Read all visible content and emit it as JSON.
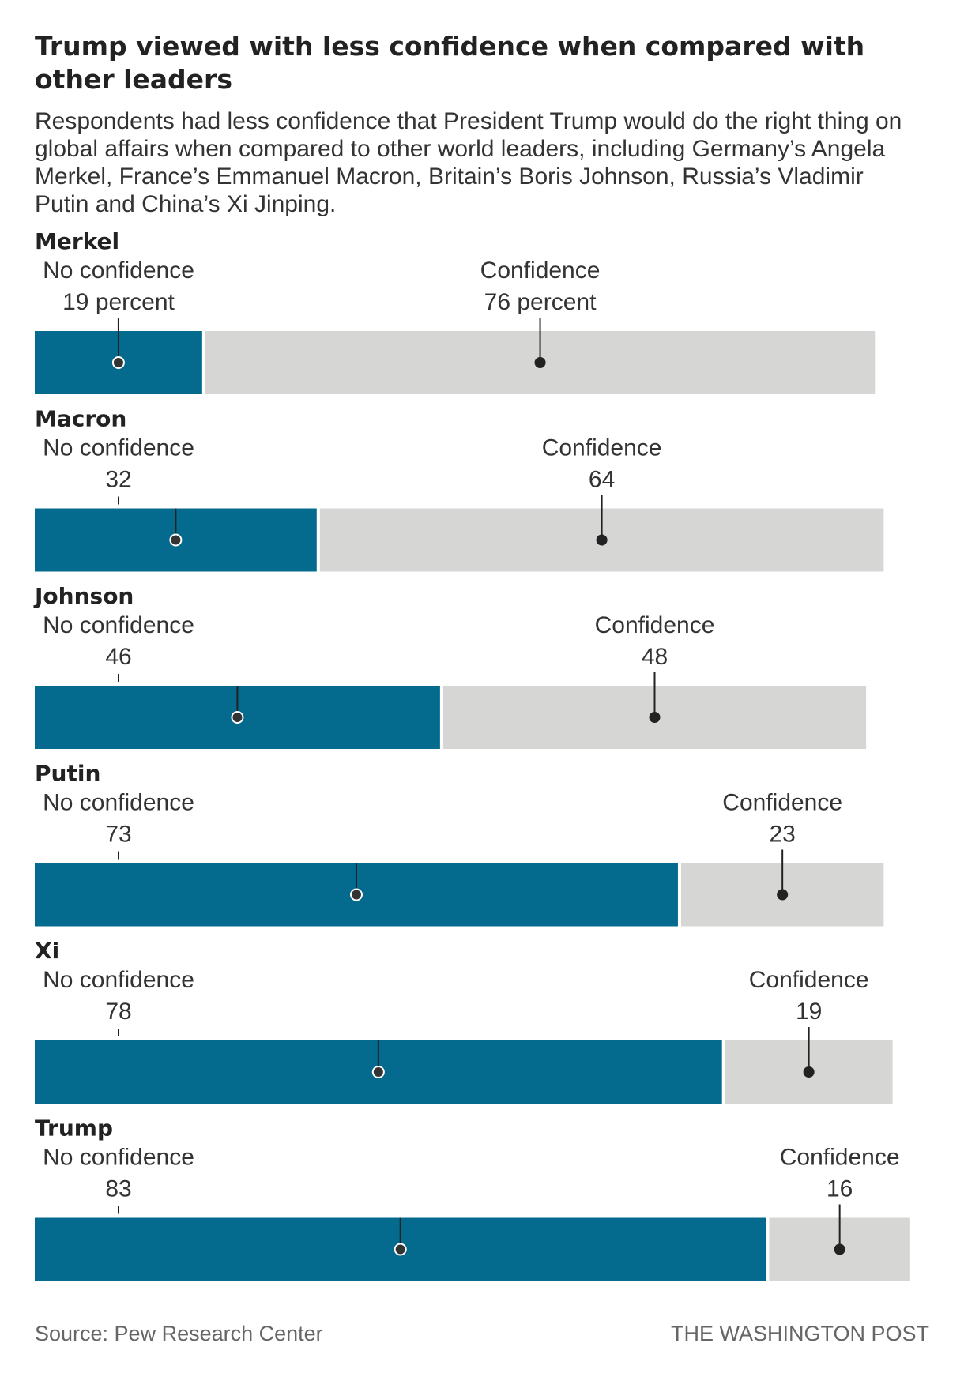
{
  "chart_data": {
    "type": "bar",
    "orientation": "horizontal-stacked",
    "title": "Trump viewed with less confidence when compared with other leaders",
    "subtitle": "Respondents had less confidence that President Trump would do the right thing on global affairs when compared to other world leaders, including Germany’s Angela Merkel, France’s Emmanuel Macron, Britain’s Boris Johnson, Russia’s Vladimir Putin and China’s Xi Jinping.",
    "xlim": [
      0,
      100
    ],
    "series": [
      {
        "name": "No confidence",
        "color": "#046b8f"
      },
      {
        "name": "Confidence",
        "color": "#d6d6d4"
      }
    ],
    "rows": [
      {
        "leader": "Merkel",
        "no_conf": 19,
        "conf": 76,
        "no_label": "No confidence",
        "no_value": "19 percent",
        "conf_label": "Confidence",
        "conf_value": "76 percent"
      },
      {
        "leader": "Macron",
        "no_conf": 32,
        "conf": 64,
        "no_label": "No confidence",
        "no_value": "32",
        "conf_label": "Confidence",
        "conf_value": "64"
      },
      {
        "leader": "Johnson",
        "no_conf": 46,
        "conf": 48,
        "no_label": "No confidence",
        "no_value": "46",
        "conf_label": "Confidence",
        "conf_value": "48"
      },
      {
        "leader": "Putin",
        "no_conf": 73,
        "conf": 23,
        "no_label": "No confidence",
        "no_value": "73",
        "conf_label": "Confidence",
        "conf_value": "23"
      },
      {
        "leader": "Xi",
        "no_conf": 78,
        "conf": 19,
        "no_label": "No confidence",
        "no_value": "78",
        "conf_label": "Confidence",
        "conf_value": "19"
      },
      {
        "leader": "Trump",
        "no_conf": 83,
        "conf": 16,
        "no_label": "No confidence",
        "no_value": "83",
        "conf_label": "Confidence",
        "conf_value": "16"
      }
    ],
    "source": "Source: Pew Research Center",
    "credit": "THE WASHINGTON POST"
  }
}
